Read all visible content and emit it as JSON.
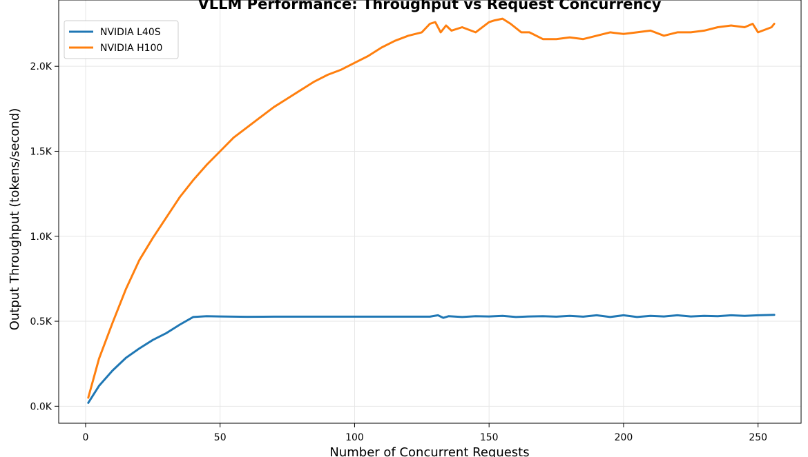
{
  "chart_data": {
    "type": "line",
    "title": "VLLM Performance: Throughput vs Request Concurrency",
    "xlabel": "Number of Concurrent Requests",
    "ylabel": "Output Throughput (tokens/second)",
    "xlim": [
      -10,
      266
    ],
    "ylim": [
      -100,
      2390
    ],
    "x_ticks": [
      0,
      50,
      100,
      150,
      200,
      250
    ],
    "x_tick_labels": [
      "0",
      "50",
      "100",
      "150",
      "200",
      "250"
    ],
    "y_ticks": [
      0,
      500,
      1000,
      1500,
      2000
    ],
    "y_tick_labels": [
      "0.0K",
      "0.5K",
      "1.0K",
      "1.5K",
      "2.0K"
    ],
    "grid": true,
    "legend_position": "top-left",
    "series": [
      {
        "name": "NVIDIA L40S",
        "color": "#1f77b4",
        "x": [
          1,
          5,
          10,
          15,
          20,
          25,
          30,
          35,
          40,
          45,
          50,
          60,
          70,
          80,
          90,
          100,
          110,
          120,
          128,
          131,
          133,
          135,
          140,
          145,
          150,
          155,
          160,
          165,
          170,
          175,
          180,
          185,
          190,
          195,
          200,
          205,
          210,
          215,
          220,
          225,
          230,
          235,
          240,
          245,
          250,
          256
        ],
        "values": [
          20,
          120,
          210,
          285,
          340,
          390,
          430,
          480,
          525,
          530,
          528,
          526,
          527,
          527,
          527,
          527,
          527,
          527,
          527,
          535,
          520,
          530,
          525,
          530,
          528,
          532,
          525,
          528,
          530,
          527,
          532,
          527,
          535,
          525,
          535,
          525,
          532,
          528,
          535,
          528,
          532,
          530,
          535,
          532,
          535,
          538
        ]
      },
      {
        "name": "NVIDIA H100",
        "color": "#ff7f0e",
        "x": [
          1,
          5,
          10,
          15,
          20,
          25,
          30,
          35,
          40,
          45,
          50,
          55,
          60,
          65,
          70,
          75,
          80,
          85,
          90,
          95,
          100,
          105,
          110,
          115,
          120,
          125,
          128,
          130,
          132,
          134,
          136,
          140,
          145,
          150,
          152,
          155,
          158,
          162,
          165,
          170,
          175,
          180,
          185,
          190,
          195,
          200,
          205,
          210,
          215,
          220,
          225,
          230,
          235,
          240,
          245,
          248,
          250,
          255,
          256
        ],
        "values": [
          50,
          280,
          490,
          690,
          860,
          990,
          1110,
          1230,
          1330,
          1420,
          1500,
          1580,
          1640,
          1700,
          1760,
          1810,
          1860,
          1910,
          1950,
          1980,
          2020,
          2060,
          2110,
          2150,
          2180,
          2200,
          2250,
          2260,
          2200,
          2240,
          2210,
          2230,
          2200,
          2260,
          2270,
          2280,
          2250,
          2200,
          2200,
          2160,
          2160,
          2170,
          2160,
          2180,
          2200,
          2190,
          2200,
          2210,
          2180,
          2200,
          2200,
          2210,
          2230,
          2240,
          2230,
          2250,
          2200,
          2230,
          2250
        ]
      }
    ]
  }
}
